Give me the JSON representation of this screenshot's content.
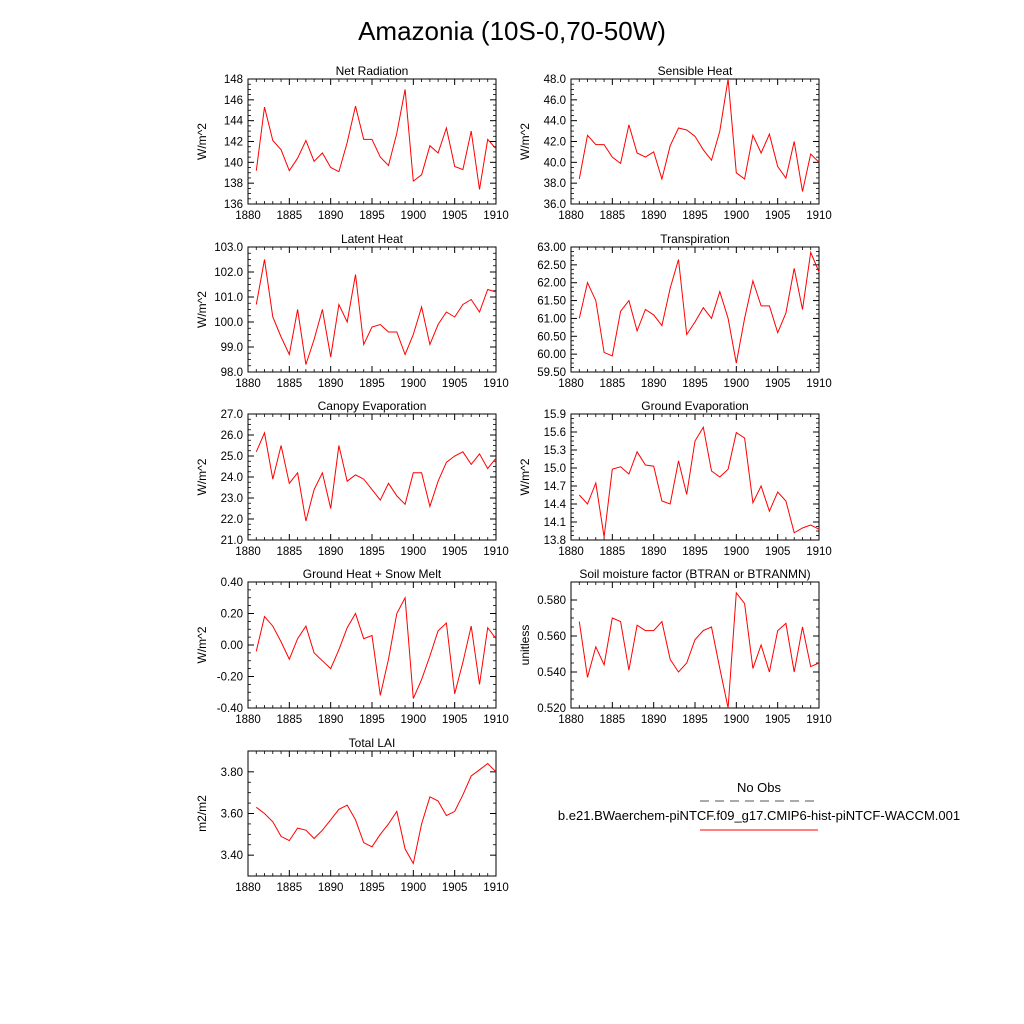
{
  "title": "Amazonia (10S-0,70-50W)",
  "chart_data": [
    {
      "type": "line",
      "title": "Net Radiation",
      "ylabel": "W/m^2",
      "xlim": [
        1880,
        1910
      ],
      "ylim": [
        136,
        148
      ],
      "yticks": [
        "136",
        "138",
        "140",
        "142",
        "144",
        "146",
        "148"
      ],
      "xticks": [
        "1880",
        "1885",
        "1890",
        "1895",
        "1900",
        "1905",
        "1910"
      ],
      "x": [
        1881,
        1882,
        1883,
        1884,
        1885,
        1886,
        1887,
        1888,
        1889,
        1890,
        1891,
        1892,
        1893,
        1894,
        1895,
        1896,
        1897,
        1898,
        1899,
        1900,
        1901,
        1902,
        1903,
        1904,
        1905,
        1906,
        1907,
        1908,
        1909,
        1910
      ],
      "series": [
        {
          "color": "#ff0000",
          "values": [
            139.2,
            145.3,
            142.1,
            141.2,
            139.2,
            140.4,
            142.1,
            140.1,
            140.9,
            139.5,
            139.1,
            141.9,
            145.4,
            142.2,
            142.2,
            140.5,
            139.7,
            142.8,
            147.0,
            138.2,
            138.8,
            141.6,
            140.9,
            143.3,
            139.6,
            139.3,
            143.0,
            137.4,
            142.2,
            141.3
          ]
        }
      ]
    },
    {
      "type": "line",
      "title": "Sensible Heat",
      "ylabel": "W/m^2",
      "xlim": [
        1880,
        1910
      ],
      "ylim": [
        36.0,
        48.0
      ],
      "yticks": [
        "36.0",
        "38.0",
        "40.0",
        "42.0",
        "44.0",
        "46.0",
        "48.0"
      ],
      "xticks": [
        "1880",
        "1885",
        "1890",
        "1895",
        "1900",
        "1905",
        "1910"
      ],
      "x": [
        1881,
        1882,
        1883,
        1884,
        1885,
        1886,
        1887,
        1888,
        1889,
        1890,
        1891,
        1892,
        1893,
        1894,
        1895,
        1896,
        1897,
        1898,
        1899,
        1900,
        1901,
        1902,
        1903,
        1904,
        1905,
        1906,
        1907,
        1908,
        1909,
        1910
      ],
      "series": [
        {
          "color": "#ff0000",
          "values": [
            38.4,
            42.6,
            41.7,
            41.7,
            40.5,
            39.9,
            43.6,
            40.9,
            40.5,
            41.0,
            38.4,
            41.6,
            43.3,
            43.1,
            42.5,
            41.2,
            40.2,
            43.0,
            48.0,
            39.0,
            38.4,
            42.6,
            40.9,
            42.7,
            39.6,
            38.5,
            42.0,
            37.2,
            40.8,
            40.0
          ]
        }
      ]
    },
    {
      "type": "line",
      "title": "Latent Heat",
      "ylabel": "W/m^2",
      "xlim": [
        1880,
        1910
      ],
      "ylim": [
        98.0,
        103.0
      ],
      "yticks": [
        "98.0",
        "99.0",
        "100.0",
        "101.0",
        "102.0",
        "103.0"
      ],
      "xticks": [
        "1880",
        "1885",
        "1890",
        "1895",
        "1900",
        "1905",
        "1910"
      ],
      "x": [
        1881,
        1882,
        1883,
        1884,
        1885,
        1886,
        1887,
        1888,
        1889,
        1890,
        1891,
        1892,
        1893,
        1894,
        1895,
        1896,
        1897,
        1898,
        1899,
        1900,
        1901,
        1902,
        1903,
        1904,
        1905,
        1906,
        1907,
        1908,
        1909,
        1910
      ],
      "series": [
        {
          "color": "#ff0000",
          "values": [
            100.7,
            102.5,
            100.2,
            99.4,
            98.7,
            100.5,
            98.3,
            99.3,
            100.5,
            98.6,
            100.7,
            100.0,
            101.9,
            99.1,
            99.8,
            99.9,
            99.6,
            99.6,
            98.7,
            99.5,
            100.6,
            99.1,
            99.9,
            100.4,
            100.2,
            100.7,
            100.9,
            100.4,
            101.3,
            101.2
          ]
        }
      ]
    },
    {
      "type": "line",
      "title": "Transpiration",
      "ylabel": "",
      "xlim": [
        1880,
        1910
      ],
      "ylim": [
        59.5,
        63.0
      ],
      "yticks": [
        "59.50",
        "60.00",
        "60.50",
        "61.00",
        "61.50",
        "62.00",
        "62.50",
        "63.00"
      ],
      "xticks": [
        "1880",
        "1885",
        "1890",
        "1895",
        "1900",
        "1905",
        "1910"
      ],
      "x": [
        1881,
        1882,
        1883,
        1884,
        1885,
        1886,
        1887,
        1888,
        1889,
        1890,
        1891,
        1892,
        1893,
        1894,
        1895,
        1896,
        1897,
        1898,
        1899,
        1900,
        1901,
        1902,
        1903,
        1904,
        1905,
        1906,
        1907,
        1908,
        1909,
        1910
      ],
      "series": [
        {
          "color": "#ff0000",
          "values": [
            61.0,
            62.0,
            61.5,
            60.05,
            59.95,
            61.2,
            61.5,
            60.65,
            61.25,
            61.1,
            60.8,
            61.85,
            62.65,
            60.55,
            60.9,
            61.3,
            61.0,
            61.75,
            61.0,
            59.75,
            61.0,
            62.05,
            61.35,
            61.35,
            60.6,
            61.15,
            62.4,
            61.25,
            62.85,
            62.3
          ]
        }
      ]
    },
    {
      "type": "line",
      "title": "Canopy Evaporation",
      "ylabel": "W/m^2",
      "xlim": [
        1880,
        1910
      ],
      "ylim": [
        21.0,
        27.0
      ],
      "yticks": [
        "21.0",
        "22.0",
        "23.0",
        "24.0",
        "25.0",
        "26.0",
        "27.0"
      ],
      "xticks": [
        "1880",
        "1885",
        "1890",
        "1895",
        "1900",
        "1905",
        "1910"
      ],
      "x": [
        1881,
        1882,
        1883,
        1884,
        1885,
        1886,
        1887,
        1888,
        1889,
        1890,
        1891,
        1892,
        1893,
        1894,
        1895,
        1896,
        1897,
        1898,
        1899,
        1900,
        1901,
        1902,
        1903,
        1904,
        1905,
        1906,
        1907,
        1908,
        1909,
        1910
      ],
      "series": [
        {
          "color": "#ff0000",
          "values": [
            25.2,
            26.1,
            23.9,
            25.5,
            23.7,
            24.2,
            21.9,
            23.4,
            24.2,
            22.5,
            25.5,
            23.8,
            24.1,
            23.9,
            23.4,
            22.9,
            23.7,
            23.1,
            22.7,
            24.2,
            24.2,
            22.6,
            23.8,
            24.7,
            25.0,
            25.2,
            24.6,
            25.1,
            24.4,
            24.9
          ]
        }
      ]
    },
    {
      "type": "line",
      "title": "Ground Evaporation",
      "ylabel": "W/m^2",
      "xlim": [
        1880,
        1910
      ],
      "ylim": [
        13.8,
        15.9
      ],
      "yticks": [
        "13.8",
        "14.1",
        "14.4",
        "14.7",
        "15.0",
        "15.3",
        "15.6",
        "15.9"
      ],
      "xticks": [
        "1880",
        "1885",
        "1890",
        "1895",
        "1900",
        "1905",
        "1910"
      ],
      "x": [
        1881,
        1882,
        1883,
        1884,
        1885,
        1886,
        1887,
        1888,
        1889,
        1890,
        1891,
        1892,
        1893,
        1894,
        1895,
        1896,
        1897,
        1898,
        1899,
        1900,
        1901,
        1902,
        1903,
        1904,
        1905,
        1906,
        1907,
        1908,
        1909,
        1910
      ],
      "series": [
        {
          "color": "#ff0000",
          "values": [
            14.55,
            14.4,
            14.75,
            13.85,
            14.98,
            15.02,
            14.9,
            15.27,
            15.05,
            15.03,
            14.45,
            14.4,
            15.12,
            14.56,
            15.45,
            15.68,
            14.95,
            14.85,
            14.98,
            15.59,
            15.5,
            14.42,
            14.7,
            14.28,
            14.6,
            14.45,
            13.92,
            14.0,
            14.05,
            13.98
          ]
        }
      ]
    },
    {
      "type": "line",
      "title": "Ground Heat + Snow Melt",
      "ylabel": "W/m^2",
      "xlim": [
        1880,
        1910
      ],
      "ylim": [
        -0.4,
        0.4
      ],
      "yticks": [
        "-0.40",
        "-0.20",
        "0.00",
        "0.20",
        "0.40"
      ],
      "xticks": [
        "1880",
        "1885",
        "1890",
        "1895",
        "1900",
        "1905",
        "1910"
      ],
      "x": [
        1881,
        1882,
        1883,
        1884,
        1885,
        1886,
        1887,
        1888,
        1889,
        1890,
        1891,
        1892,
        1893,
        1894,
        1895,
        1896,
        1897,
        1898,
        1899,
        1900,
        1901,
        1902,
        1903,
        1904,
        1905,
        1906,
        1907,
        1908,
        1909,
        1910
      ],
      "series": [
        {
          "color": "#ff0000",
          "values": [
            -0.04,
            0.18,
            0.12,
            0.02,
            -0.09,
            0.04,
            0.12,
            -0.05,
            -0.1,
            -0.15,
            -0.03,
            0.11,
            0.2,
            0.04,
            0.06,
            -0.32,
            -0.09,
            0.2,
            0.3,
            -0.34,
            -0.22,
            -0.07,
            0.09,
            0.14,
            -0.31,
            -0.11,
            0.12,
            -0.25,
            0.11,
            0.04
          ]
        }
      ]
    },
    {
      "type": "line",
      "title": "Soil moisture factor (BTRAN or BTRANMN)",
      "ylabel": "unitless",
      "xlim": [
        1880,
        1910
      ],
      "ylim": [
        0.52,
        0.59
      ],
      "yticks": [
        "0.520",
        "0.540",
        "0.560",
        "0.580"
      ],
      "xticks": [
        "1880",
        "1885",
        "1890",
        "1895",
        "1900",
        "1905",
        "1910"
      ],
      "x": [
        1881,
        1882,
        1883,
        1884,
        1885,
        1886,
        1887,
        1888,
        1889,
        1890,
        1891,
        1892,
        1893,
        1894,
        1895,
        1896,
        1897,
        1898,
        1899,
        1900,
        1901,
        1902,
        1903,
        1904,
        1905,
        1906,
        1907,
        1908,
        1909,
        1910
      ],
      "series": [
        {
          "color": "#ff0000",
          "values": [
            0.568,
            0.537,
            0.554,
            0.544,
            0.57,
            0.568,
            0.541,
            0.566,
            0.563,
            0.563,
            0.568,
            0.547,
            0.54,
            0.545,
            0.558,
            0.563,
            0.565,
            0.542,
            0.52,
            0.584,
            0.578,
            0.542,
            0.555,
            0.54,
            0.563,
            0.567,
            0.54,
            0.565,
            0.543,
            0.545
          ]
        }
      ]
    },
    {
      "type": "line",
      "title": "Total LAI",
      "ylabel": "m2/m2",
      "xlim": [
        1880,
        1910
      ],
      "ylim": [
        3.3,
        3.9
      ],
      "yticks": [
        "3.40",
        "3.60",
        "3.80"
      ],
      "xticks": [
        "1880",
        "1885",
        "1890",
        "1895",
        "1900",
        "1905",
        "1910"
      ],
      "x": [
        1881,
        1882,
        1883,
        1884,
        1885,
        1886,
        1887,
        1888,
        1889,
        1890,
        1891,
        1892,
        1893,
        1894,
        1895,
        1896,
        1897,
        1898,
        1899,
        1900,
        1901,
        1902,
        1903,
        1904,
        1905,
        1906,
        1907,
        1908,
        1909,
        1910
      ],
      "series": [
        {
          "color": "#ff0000",
          "values": [
            3.63,
            3.6,
            3.56,
            3.49,
            3.47,
            3.53,
            3.52,
            3.48,
            3.52,
            3.57,
            3.62,
            3.64,
            3.57,
            3.46,
            3.44,
            3.5,
            3.55,
            3.61,
            3.43,
            3.36,
            3.55,
            3.68,
            3.66,
            3.59,
            3.61,
            3.69,
            3.78,
            3.81,
            3.84,
            3.8
          ]
        }
      ]
    }
  ],
  "legend": {
    "obs_label": "No Obs",
    "obs_color": "#555555",
    "model_label": "b.e21.BWaerchem-piNTCF.f09_g17.CMIP6-hist-piNTCF-WACCM.001",
    "model_color": "#ff0000"
  }
}
